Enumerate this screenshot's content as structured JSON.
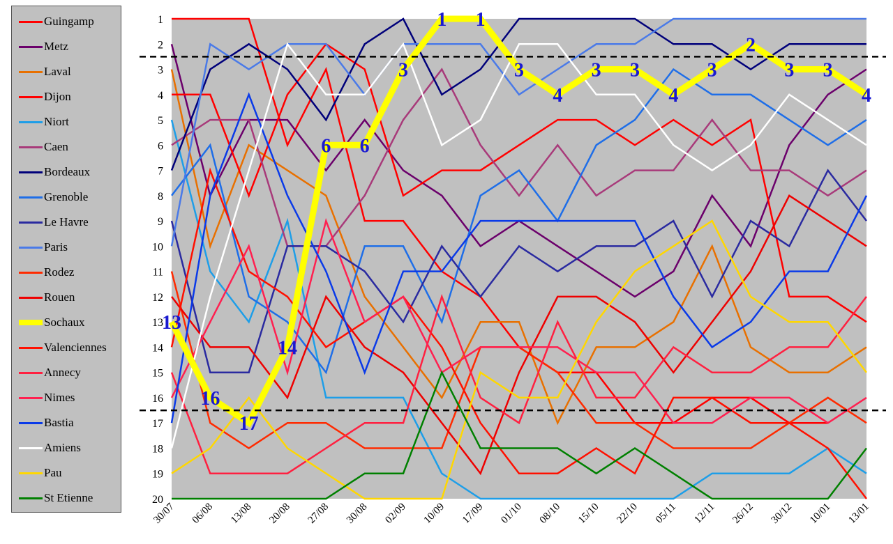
{
  "chart_data": {
    "type": "line",
    "title": "",
    "xlabel": "",
    "ylabel": "",
    "ylim": [
      1,
      20
    ],
    "y_inverted": true,
    "grid": false,
    "legend_placement": "left",
    "categories": [
      "30/07",
      "06/08",
      "13/08",
      "20/08",
      "27/08",
      "30/08",
      "02/09",
      "10/09",
      "17/09",
      "01/10",
      "08/10",
      "15/10",
      "22/10",
      "05/11",
      "12/11",
      "26/12",
      "30/12",
      "10/01",
      "13/01"
    ],
    "y_ticks": [
      "1",
      "2",
      "3",
      "4",
      "5",
      "6",
      "7",
      "8",
      "9",
      "10",
      "11",
      "12",
      "13",
      "14",
      "15",
      "16",
      "17",
      "18",
      "19",
      "20"
    ],
    "reference_lines": [
      2.5,
      16.5
    ],
    "highlight_series": "Sochaux",
    "highlight_labels": [
      "13",
      "16",
      "17",
      "14",
      "6",
      "6",
      "3",
      "1",
      "1",
      "3",
      "4",
      "3",
      "3",
      "4",
      "3",
      "2",
      "3",
      "3",
      "4"
    ],
    "series": [
      {
        "name": "Guingamp",
        "color": "#ff0000",
        "values": [
          1,
          1,
          1,
          6,
          3,
          9,
          9,
          11,
          12,
          14,
          15,
          15,
          17,
          17,
          16,
          16,
          17,
          17,
          null
        ]
      },
      {
        "name": "Metz",
        "color": "#6b006b",
        "values": [
          2,
          8,
          5,
          5,
          7,
          5,
          7,
          8,
          10,
          9,
          10,
          11,
          12,
          11,
          8,
          10,
          6,
          4,
          3
        ]
      },
      {
        "name": "Laval",
        "color": "#e87000",
        "values": [
          3,
          10,
          6,
          7,
          8,
          12,
          14,
          16,
          13,
          13,
          17,
          14,
          14,
          13,
          10,
          14,
          15,
          15,
          14
        ]
      },
      {
        "name": "Dijon",
        "color": "#ff0000",
        "values": [
          4,
          4,
          8,
          4,
          2,
          3,
          8,
          7,
          7,
          6,
          5,
          5,
          6,
          5,
          6,
          5,
          12,
          12,
          13
        ]
      },
      {
        "name": "Niort",
        "color": "#1e9ee8",
        "values": [
          5,
          11,
          13,
          9,
          16,
          16,
          16,
          19,
          20,
          20,
          20,
          20,
          20,
          20,
          19,
          19,
          19,
          18,
          19
        ]
      },
      {
        "name": "Caen",
        "color": "#a83a7a",
        "values": [
          6,
          5,
          5,
          10,
          10,
          8,
          5,
          3,
          6,
          8,
          6,
          8,
          7,
          7,
          5,
          7,
          7,
          8,
          7
        ]
      },
      {
        "name": "Bordeaux",
        "color": "#00007a",
        "values": [
          7,
          3,
          2,
          3,
          5,
          2,
          1,
          4,
          3,
          1,
          1,
          1,
          1,
          2,
          2,
          3,
          2,
          2,
          2
        ]
      },
      {
        "name": "Grenoble",
        "color": "#1e6ee8",
        "values": [
          8,
          6,
          12,
          13,
          15,
          10,
          10,
          13,
          8,
          7,
          9,
          6,
          5,
          3,
          4,
          4,
          5,
          6,
          5
        ]
      },
      {
        "name": "Le Havre",
        "color": "#2a2aa0",
        "values": [
          9,
          15,
          15,
          10,
          10,
          11,
          13,
          10,
          12,
          10,
          11,
          10,
          10,
          9,
          12,
          9,
          10,
          7,
          9
        ]
      },
      {
        "name": "Paris",
        "color": "#4a7ae8",
        "values": [
          10,
          2,
          3,
          2,
          2,
          4,
          2,
          2,
          2,
          4,
          3,
          2,
          2,
          1,
          1,
          1,
          1,
          1,
          1
        ]
      },
      {
        "name": "Rodez",
        "color": "#ff2a00",
        "values": [
          11,
          17,
          18,
          17,
          17,
          18,
          18,
          18,
          14,
          14,
          15,
          17,
          17,
          18,
          18,
          18,
          17,
          16,
          17
        ]
      },
      {
        "name": "Rouen",
        "color": "#ee0000",
        "values": [
          12,
          14,
          14,
          16,
          12,
          14,
          15,
          17,
          19,
          15,
          12,
          12,
          13,
          15,
          13,
          11,
          8,
          9,
          10
        ]
      },
      {
        "name": "Sochaux",
        "color": "#ffff00",
        "values": [
          13,
          16,
          17,
          14,
          6,
          6,
          3,
          1,
          1,
          3,
          4,
          3,
          3,
          4,
          3,
          2,
          3,
          3,
          4
        ]
      },
      {
        "name": "Valenciennes",
        "color": "#ff1000",
        "values": [
          14,
          7,
          11,
          12,
          14,
          13,
          12,
          14,
          17,
          19,
          19,
          18,
          19,
          16,
          16,
          17,
          17,
          18,
          20
        ]
      },
      {
        "name": "Annecy",
        "color": "#ff2040",
        "values": [
          15,
          19,
          19,
          19,
          18,
          17,
          17,
          12,
          16,
          17,
          13,
          16,
          16,
          14,
          15,
          15,
          14,
          14,
          12
        ]
      },
      {
        "name": "Nimes",
        "color": "#ff2050",
        "values": [
          16,
          13,
          10,
          15,
          9,
          13,
          12,
          15,
          14,
          14,
          14,
          15,
          15,
          17,
          17,
          16,
          16,
          17,
          16
        ]
      },
      {
        "name": "Bastia",
        "color": "#0a3ae8",
        "values": [
          17,
          8,
          4,
          8,
          11,
          15,
          11,
          11,
          9,
          9,
          9,
          9,
          9,
          12,
          14,
          13,
          11,
          11,
          8
        ]
      },
      {
        "name": "Amiens",
        "color": "#ffffff",
        "values": [
          18,
          12,
          7,
          2,
          4,
          4,
          2,
          6,
          5,
          2,
          2,
          4,
          4,
          6,
          7,
          6,
          4,
          5,
          6
        ]
      },
      {
        "name": "Pau",
        "color": "#ffd700",
        "values": [
          19,
          18,
          16,
          18,
          19,
          20,
          20,
          20,
          15,
          16,
          16,
          13,
          11,
          10,
          9,
          12,
          13,
          13,
          15
        ]
      },
      {
        "name": "St Etienne",
        "color": "#008000",
        "values": [
          20,
          20,
          20,
          20,
          20,
          19,
          19,
          15,
          18,
          18,
          18,
          19,
          18,
          19,
          20,
          20,
          20,
          20,
          18
        ]
      }
    ]
  }
}
